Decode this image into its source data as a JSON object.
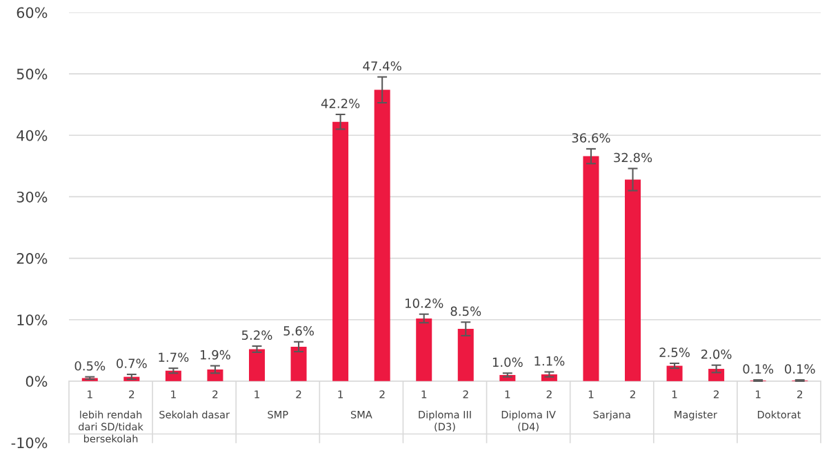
{
  "chart_data": {
    "type": "bar",
    "categories": [
      "1",
      "2",
      "1",
      "2",
      "1",
      "2",
      "1",
      "2",
      "1",
      "2",
      "1",
      "2",
      "1",
      "2",
      "1",
      "2",
      "1",
      "2"
    ],
    "values": [
      0.5,
      0.7,
      1.7,
      1.9,
      5.2,
      5.6,
      42.2,
      47.4,
      10.2,
      8.5,
      1.0,
      1.1,
      36.6,
      32.8,
      2.5,
      2.0,
      0.1,
      0.1
    ],
    "value_labels": [
      "0.5%",
      "0.7%",
      "1.7%",
      "1.9%",
      "5.2%",
      "5.6%",
      "42.2%",
      "47.4%",
      "10.2%",
      "8.5%",
      "1.0%",
      "1.1%",
      "36.6%",
      "32.8%",
      "2.5%",
      "2.0%",
      "0.1%",
      "0.1%"
    ],
    "errors": [
      0.2,
      0.4,
      0.4,
      0.6,
      0.5,
      0.8,
      1.2,
      2.1,
      0.7,
      1.1,
      0.3,
      0.4,
      1.2,
      1.8,
      0.4,
      0.6,
      0.1,
      0.1
    ],
    "color": "#ed1941",
    "annotations": [
      "lebih rendah dari SD/tidak bersekolah",
      "Sekolah dasar",
      "SMP",
      "SMA",
      "Diploma III (D3)",
      "Diploma IV (D4)",
      "Sarjana",
      "Magister",
      "Doktorat"
    ],
    "ylim": [
      -10,
      60
    ],
    "yticks": [
      {
        "value": -10,
        "label": "-10%"
      },
      {
        "value": 0,
        "label": "0%"
      },
      {
        "value": 10,
        "label": "10%"
      },
      {
        "value": 20,
        "label": "20%"
      },
      {
        "value": 30,
        "label": "30%"
      },
      {
        "value": 40,
        "label": "40%"
      },
      {
        "value": 50,
        "label": "50%"
      },
      {
        "value": 60,
        "label": "60%"
      }
    ],
    "grid": "y"
  }
}
